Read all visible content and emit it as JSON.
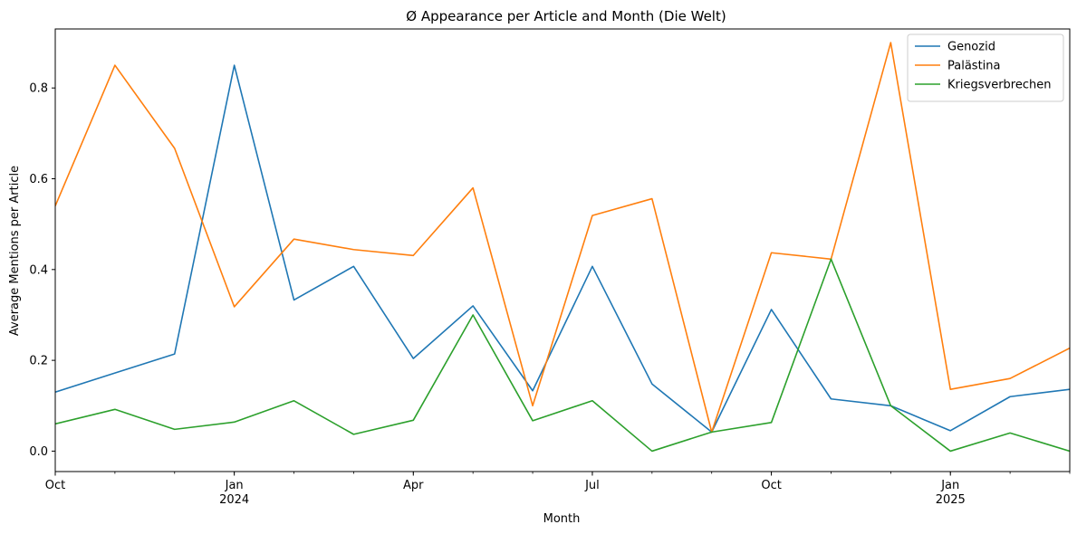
{
  "chart_data": {
    "type": "line",
    "title": "Ø Appearance per Article and Month (Die Welt)",
    "xlabel": "Month",
    "ylabel": "Average Mentions per Article",
    "x": [
      "2023-10",
      "2023-11",
      "2023-12",
      "2024-01",
      "2024-02",
      "2024-03",
      "2024-04",
      "2024-05",
      "2024-06",
      "2024-07",
      "2024-08",
      "2024-09",
      "2024-10",
      "2024-11",
      "2024-12",
      "2025-01",
      "2025-02",
      "2025-03"
    ],
    "xlim": [
      "2023-10",
      "2025-03"
    ],
    "ylim": [
      -0.045,
      0.93
    ],
    "yticks": [
      0.0,
      0.2,
      0.4,
      0.6,
      0.8
    ],
    "ytick_labels": [
      "0.0",
      "0.2",
      "0.4",
      "0.6",
      "0.8"
    ],
    "xticks": [
      {
        "x": "2023-10",
        "label": "Oct",
        "sub": ""
      },
      {
        "x": "2024-01",
        "label": "Jan",
        "sub": "2024"
      },
      {
        "x": "2024-04",
        "label": "Apr",
        "sub": ""
      },
      {
        "x": "2024-07",
        "label": "Jul",
        "sub": ""
      },
      {
        "x": "2024-10",
        "label": "Oct",
        "sub": ""
      },
      {
        "x": "2025-01",
        "label": "Jan",
        "sub": "2025"
      }
    ],
    "legend_position": "top-right",
    "grid": false,
    "series": [
      {
        "name": "Genozid",
        "color": "#1f77b4",
        "values": [
          0.13,
          0.172,
          0.214,
          0.85,
          0.333,
          0.407,
          0.204,
          0.32,
          0.133,
          0.407,
          0.148,
          0.042,
          0.312,
          0.115,
          0.1,
          0.045,
          0.12,
          0.136
        ]
      },
      {
        "name": "Palästina",
        "color": "#ff7f0e",
        "values": [
          0.54,
          0.85,
          0.667,
          0.318,
          0.467,
          0.444,
          0.431,
          0.58,
          0.1,
          0.519,
          0.556,
          0.042,
          0.437,
          0.423,
          0.9,
          0.136,
          0.16,
          0.227
        ]
      },
      {
        "name": "Kriegsverbrechen",
        "color": "#2ca02c",
        "values": [
          0.06,
          0.092,
          0.048,
          0.064,
          0.111,
          0.037,
          0.068,
          0.3,
          0.067,
          0.111,
          0.0,
          0.042,
          0.063,
          0.423,
          0.1,
          0.0,
          0.04,
          0.0
        ]
      }
    ]
  }
}
